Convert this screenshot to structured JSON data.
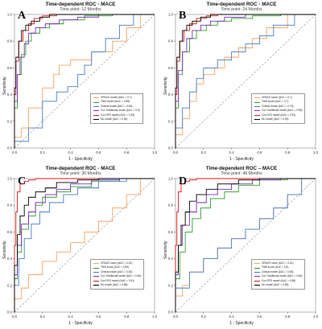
{
  "colors": {
    "grace": "#f4a460",
    "tnm": "#2ca02c",
    "clinical": "#4a7fc1",
    "traditional": "#7b2cbf",
    "rfs": "#e31a1c",
    "ml": "#000000"
  },
  "chart_data": [
    {
      "type": "line",
      "panel": "A",
      "title": "Time-dependent ROC - MACE",
      "subtitle": "Time point: 12 Months",
      "xlabel": "1 - Specificity",
      "ylabel": "Sensitivity",
      "xlim": [
        0,
        1
      ],
      "ylim": [
        0,
        1
      ],
      "xticks": [
        "0.0",
        "0.2",
        "0.4",
        "0.6",
        "0.8",
        "1.0"
      ],
      "yticks": [
        "0.0",
        "0.2",
        "0.4",
        "0.6",
        "0.8",
        "1.0"
      ],
      "grid": false,
      "legend_placement": "lower-right",
      "series": [
        {
          "name": "GRACE model (AUC = 0.7)",
          "color_key": "grace",
          "x": [
            0,
            0.05,
            0.1,
            0.2,
            0.28,
            0.32,
            0.4,
            0.55,
            0.7,
            0.8,
            0.9,
            1.0
          ],
          "y": [
            0,
            0.08,
            0.15,
            0.3,
            0.45,
            0.55,
            0.62,
            0.66,
            0.72,
            0.8,
            0.9,
            1.0
          ]
        },
        {
          "name": "TNM model (AUC = 0.89)",
          "color_key": "tnm",
          "x": [
            0,
            0.02,
            0.05,
            0.08,
            0.12,
            0.18,
            0.25,
            0.35,
            0.5,
            0.7,
            1.0
          ],
          "y": [
            0,
            0.3,
            0.55,
            0.7,
            0.8,
            0.86,
            0.9,
            0.93,
            0.96,
            0.99,
            1.0
          ]
        },
        {
          "name": "Clinical model (AUC = 0.66)",
          "color_key": "clinical",
          "x": [
            0,
            0.1,
            0.2,
            0.3,
            0.38,
            0.45,
            0.5,
            0.55,
            0.65,
            0.75,
            0.85,
            1.0
          ],
          "y": [
            0,
            0.05,
            0.15,
            0.35,
            0.42,
            0.46,
            0.55,
            0.62,
            0.72,
            0.82,
            0.92,
            1.0
          ]
        },
        {
          "name": "Cox Traditional model (AUC = 0.9)",
          "color_key": "traditional",
          "x": [
            0,
            0.02,
            0.04,
            0.07,
            0.1,
            0.15,
            0.22,
            0.32,
            0.45,
            0.6,
            0.8,
            1.0
          ],
          "y": [
            0,
            0.35,
            0.55,
            0.68,
            0.78,
            0.86,
            0.9,
            0.93,
            0.96,
            0.98,
            1.0,
            1.0
          ]
        },
        {
          "name": "Cox RFS model (AUC = 0.93)",
          "color_key": "rfs",
          "x": [
            0,
            0.01,
            0.03,
            0.06,
            0.1,
            0.14,
            0.2,
            0.3,
            0.5,
            1.0
          ],
          "y": [
            0,
            0.4,
            0.65,
            0.8,
            0.88,
            0.93,
            0.97,
            0.99,
            1.0,
            1.0
          ]
        },
        {
          "name": "ML model (AUC = 0.94)",
          "color_key": "ml",
          "x": [
            0,
            0.01,
            0.03,
            0.05,
            0.08,
            0.12,
            0.18,
            0.25,
            0.4,
            0.6,
            1.0
          ],
          "y": [
            0,
            0.45,
            0.68,
            0.8,
            0.88,
            0.92,
            0.95,
            0.98,
            1.0,
            1.0,
            1.0
          ]
        }
      ]
    },
    {
      "type": "line",
      "panel": "B",
      "title": "Time-dependent ROC - MACE",
      "subtitle": "Time point: 24 Months",
      "xlabel": "1 - Specificity",
      "ylabel": "Sensitivity",
      "xlim": [
        0,
        1
      ],
      "ylim": [
        0,
        1
      ],
      "xticks": [
        "0.0",
        "0.2",
        "0.4",
        "0.6",
        "0.8",
        "1.0"
      ],
      "yticks": [
        "0.0",
        "0.2",
        "0.4",
        "0.6",
        "0.8",
        "1.0"
      ],
      "grid": false,
      "legend_placement": "lower-right",
      "series": [
        {
          "name": "GRACE score (AUC = 0.7)",
          "color_key": "grace",
          "x": [
            0,
            0.05,
            0.1,
            0.15,
            0.2,
            0.28,
            0.35,
            0.45,
            0.55,
            0.65,
            0.8,
            1.0
          ],
          "y": [
            0,
            0.1,
            0.22,
            0.35,
            0.48,
            0.55,
            0.6,
            0.68,
            0.75,
            0.82,
            0.9,
            1.0
          ]
        },
        {
          "name": "TNM score (AUC = 0.7)",
          "color_key": "tnm",
          "x": [
            0,
            0.02,
            0.05,
            0.1,
            0.15,
            0.22,
            0.3,
            0.4,
            0.55,
            0.75,
            1.0
          ],
          "y": [
            0,
            0.3,
            0.55,
            0.72,
            0.82,
            0.88,
            0.92,
            0.95,
            0.97,
            0.99,
            1.0
          ]
        },
        {
          "name": "Clinical model (AUC = 0.76)",
          "color_key": "clinical",
          "x": [
            0,
            0.05,
            0.1,
            0.15,
            0.2,
            0.3,
            0.4,
            0.5,
            0.6,
            0.7,
            0.85,
            1.0
          ],
          "y": [
            0,
            0.15,
            0.3,
            0.42,
            0.52,
            0.6,
            0.66,
            0.72,
            0.78,
            0.84,
            0.92,
            1.0
          ]
        },
        {
          "name": "Cox Traditional model (AUC = 0.89)",
          "color_key": "traditional",
          "x": [
            0,
            0.02,
            0.05,
            0.08,
            0.12,
            0.18,
            0.25,
            0.35,
            0.5,
            0.7,
            1.0
          ],
          "y": [
            0,
            0.35,
            0.58,
            0.72,
            0.82,
            0.88,
            0.92,
            0.95,
            0.98,
            1.0,
            1.0
          ]
        },
        {
          "name": "Cox RFS model (AUC = 0.91)",
          "color_key": "rfs",
          "x": [
            0,
            0.01,
            0.03,
            0.06,
            0.1,
            0.15,
            0.22,
            0.3,
            0.5,
            1.0
          ],
          "y": [
            0,
            0.4,
            0.65,
            0.8,
            0.88,
            0.93,
            0.97,
            0.99,
            1.0,
            1.0
          ]
        },
        {
          "name": "ML model (AUC = 0.93)",
          "color_key": "ml",
          "x": [
            0,
            0.01,
            0.03,
            0.05,
            0.08,
            0.12,
            0.18,
            0.25,
            0.4,
            0.6,
            1.0
          ],
          "y": [
            0,
            0.45,
            0.68,
            0.8,
            0.88,
            0.92,
            0.95,
            0.98,
            1.0,
            1.0,
            1.0
          ]
        }
      ]
    },
    {
      "type": "line",
      "panel": "C",
      "title": "Time-dependent ROC - MACE",
      "subtitle": "Time point: 36 Months",
      "xlabel": "1 - Specificity",
      "ylabel": "Sensitivity",
      "xlim": [
        0,
        1
      ],
      "ylim": [
        0,
        1
      ],
      "xticks": [
        "0.0",
        "0.2",
        "0.4",
        "0.6",
        "0.8",
        "1.0"
      ],
      "yticks": [
        "0.0",
        "0.2",
        "0.4",
        "0.6",
        "0.8",
        "1.0"
      ],
      "grid": false,
      "legend_placement": "lower-right",
      "series": [
        {
          "name": "GRACE score (AUC = 0.61)",
          "color_key": "grace",
          "x": [
            0,
            0.05,
            0.1,
            0.2,
            0.3,
            0.4,
            0.5,
            0.6,
            0.7,
            0.8,
            0.9,
            1.0
          ],
          "y": [
            0,
            0.1,
            0.18,
            0.28,
            0.38,
            0.45,
            0.52,
            0.6,
            0.68,
            0.78,
            0.88,
            1.0
          ]
        },
        {
          "name": "TNM score (AUC = 0.83)",
          "color_key": "tnm",
          "x": [
            0,
            0.02,
            0.05,
            0.1,
            0.15,
            0.2,
            0.3,
            0.4,
            0.55,
            0.75,
            1.0
          ],
          "y": [
            0,
            0.25,
            0.45,
            0.62,
            0.72,
            0.8,
            0.86,
            0.9,
            0.94,
            0.98,
            1.0
          ]
        },
        {
          "name": "Clinical model (AUC = 0.82)",
          "color_key": "clinical",
          "x": [
            0,
            0.03,
            0.07,
            0.12,
            0.18,
            0.25,
            0.35,
            0.45,
            0.6,
            0.8,
            1.0
          ],
          "y": [
            0,
            0.2,
            0.4,
            0.55,
            0.66,
            0.75,
            0.82,
            0.88,
            0.93,
            0.98,
            1.0
          ]
        },
        {
          "name": "Cox Traditional model (AUC = 0.84)",
          "color_key": "traditional",
          "x": [
            0,
            0.02,
            0.05,
            0.1,
            0.15,
            0.22,
            0.3,
            0.4,
            0.55,
            0.75,
            1.0
          ],
          "y": [
            0,
            0.28,
            0.5,
            0.66,
            0.75,
            0.82,
            0.88,
            0.92,
            0.96,
            0.99,
            1.0
          ]
        },
        {
          "name": "Cox RFS model (AUC = 0.91)",
          "color_key": "rfs",
          "x": [
            0,
            0.01,
            0.02,
            0.04,
            0.07,
            0.1,
            0.15,
            0.25,
            0.4,
            1.0
          ],
          "y": [
            0,
            0.5,
            0.75,
            0.9,
            0.96,
            0.98,
            0.99,
            1.0,
            1.0,
            1.0
          ]
        },
        {
          "name": "ML model (AUC = 0.88)",
          "color_key": "ml",
          "x": [
            0,
            0.02,
            0.04,
            0.07,
            0.1,
            0.15,
            0.22,
            0.3,
            0.45,
            0.6,
            1.0
          ],
          "y": [
            0,
            0.35,
            0.58,
            0.72,
            0.8,
            0.86,
            0.9,
            0.93,
            0.97,
            0.99,
            1.0
          ]
        }
      ]
    },
    {
      "type": "line",
      "panel": "D",
      "title": "Time-dependent ROC – MACE",
      "subtitle": "Time point: 48 Months",
      "xlabel": "1 - Specificity",
      "ylabel": "Sensitivity",
      "xlim": [
        0,
        1
      ],
      "ylim": [
        0,
        1
      ],
      "xticks": [
        "0.0",
        "0.2",
        "0.4",
        "0.6",
        "0.8",
        "1.0"
      ],
      "yticks": [
        "0.0",
        "0.2",
        "0.4",
        "0.6",
        "0.8",
        "1.0"
      ],
      "grid": false,
      "legend_placement": "lower-right",
      "series": [
        {
          "name": "GRACE score (AUC = 0.61)",
          "color_key": "grace",
          "x": [
            0,
            0.05,
            0.1,
            0.2,
            0.3,
            0.4,
            0.5,
            0.6,
            0.7,
            0.8,
            0.9,
            1.0
          ],
          "y": [
            0,
            0.12,
            0.2,
            0.3,
            0.4,
            0.48,
            0.55,
            0.62,
            0.7,
            0.78,
            0.88,
            1.0
          ]
        },
        {
          "name": "TNM score (AUC = 0.8)",
          "color_key": "tnm",
          "x": [
            0,
            0.03,
            0.07,
            0.12,
            0.18,
            0.25,
            0.35,
            0.45,
            0.6,
            0.8,
            1.0
          ],
          "y": [
            0,
            0.25,
            0.45,
            0.6,
            0.7,
            0.78,
            0.85,
            0.9,
            0.95,
            0.99,
            1.0
          ]
        },
        {
          "name": "Clinical model (AUC = 0.65)",
          "color_key": "clinical",
          "x": [
            0,
            0.1,
            0.2,
            0.3,
            0.4,
            0.5,
            0.6,
            0.7,
            0.8,
            0.9,
            1.0
          ],
          "y": [
            0,
            0.18,
            0.3,
            0.4,
            0.48,
            0.55,
            0.62,
            0.7,
            0.78,
            0.88,
            1.0
          ]
        },
        {
          "name": "Cox Traditional model (AUC = 0.84)",
          "color_key": "traditional",
          "x": [
            0,
            0.02,
            0.05,
            0.1,
            0.15,
            0.22,
            0.3,
            0.4,
            0.55,
            0.75,
            1.0
          ],
          "y": [
            0,
            0.28,
            0.5,
            0.65,
            0.75,
            0.82,
            0.88,
            0.92,
            0.96,
            0.99,
            1.0
          ]
        },
        {
          "name": "Cox RFS model (AUC = 0.88)",
          "color_key": "rfs",
          "x": [
            0,
            0.01,
            0.02,
            0.04,
            0.07,
            0.1,
            0.15,
            0.25,
            0.4,
            1.0
          ],
          "y": [
            0,
            0.5,
            0.75,
            0.9,
            0.96,
            0.98,
            0.99,
            1.0,
            1.0,
            1.0
          ]
        },
        {
          "name": "ML model (AUC = 0.85)",
          "color_key": "ml",
          "x": [
            0,
            0.02,
            0.04,
            0.07,
            0.1,
            0.15,
            0.22,
            0.3,
            0.45,
            0.6,
            1.0
          ],
          "y": [
            0,
            0.3,
            0.5,
            0.65,
            0.75,
            0.83,
            0.88,
            0.92,
            0.96,
            0.99,
            1.0
          ]
        }
      ]
    }
  ]
}
